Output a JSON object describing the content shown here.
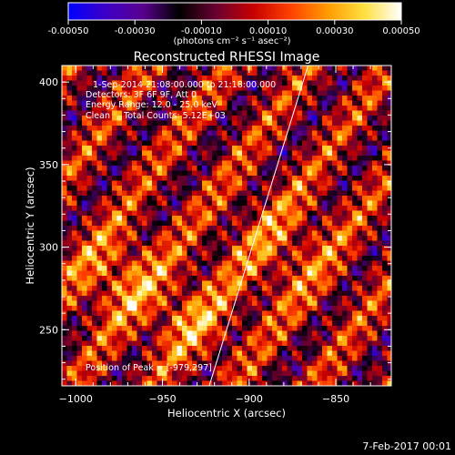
{
  "colorbar": {
    "tick_labels": [
      "-0.00050",
      "-0.00030",
      "-0.00010",
      "0.00010",
      "0.00030",
      "0.00050"
    ],
    "min": -0.0005,
    "max": 0.0005,
    "unit_label": "(photons cm⁻² s⁻¹ asec⁻²)",
    "colors": [
      "#0000ff",
      "#3c00c8",
      "#5a0090",
      "#000000",
      "#6a0030",
      "#c80000",
      "#ff4000",
      "#ff9a00",
      "#ffe040",
      "#ffffff"
    ]
  },
  "chart_data": {
    "type": "heatmap",
    "title": "Reconstructed RHESSI Image",
    "xlabel": "Heliocentric X (arcsec)",
    "ylabel": "Heliocentric Y (arcsec)",
    "xlim": [
      -1008,
      -818
    ],
    "ylim": [
      216,
      410
    ],
    "x_ticks": [
      -1000,
      -950,
      -900,
      -850
    ],
    "x_tick_labels": [
      "−1000",
      "−950",
      "−900",
      "−850"
    ],
    "y_ticks": [
      250,
      300,
      350,
      400
    ],
    "y_tick_labels": [
      "250",
      "300",
      "350",
      "400"
    ],
    "annotations": [
      "1-Sep-2014 21:08:00.000 to 21:18:00.000",
      "Detectors: 3F 6F 9F, Att 0",
      "Energy Range: 12.0 - 25.0 keV",
      "Clean     Total Counts: 5.12E+03"
    ],
    "peak_label": "Position of Peak = [-979,297]",
    "limb_line": [
      [
        -923,
        216
      ],
      [
        -866,
        410
      ]
    ],
    "grid": false
  },
  "footer": {
    "date": "7-Feb-2017 00:01"
  }
}
